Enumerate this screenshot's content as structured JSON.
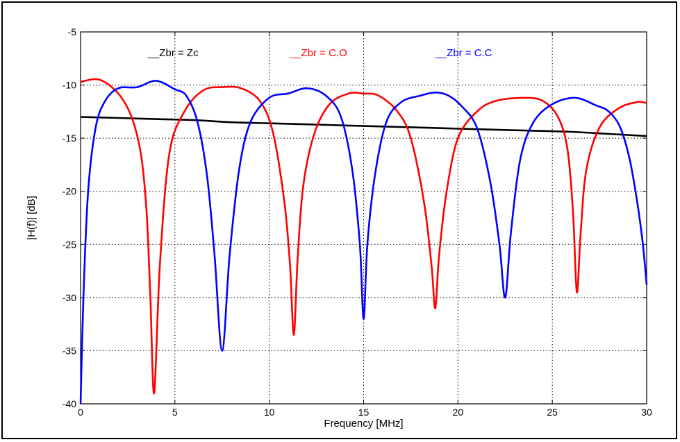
{
  "chart_data": {
    "type": "line",
    "xlabel": "Frequency [MHz]",
    "ylabel": "|H(f)| [dB]",
    "xlim": [
      0,
      30
    ],
    "ylim": [
      -40,
      -5
    ],
    "xticks": [
      0,
      5,
      10,
      15,
      20,
      25,
      30
    ],
    "yticks": [
      -40,
      -35,
      -30,
      -25,
      -20,
      -15,
      -10,
      -5
    ],
    "grid": true,
    "legend_placement": "top, inside plot",
    "series": [
      {
        "name": "__Zbr = Zc",
        "color": "#000000",
        "x": [
          0,
          2,
          4,
          6,
          8,
          10,
          12,
          14,
          16,
          18,
          20,
          22,
          24,
          26,
          28,
          30
        ],
        "values": [
          -13.0,
          -13.1,
          -13.2,
          -13.3,
          -13.5,
          -13.6,
          -13.7,
          -13.8,
          -13.9,
          -14.0,
          -14.1,
          -14.2,
          -14.3,
          -14.4,
          -14.6,
          -14.8
        ]
      },
      {
        "name": "__Zbr = C.O",
        "color": "#ff0000",
        "x": [
          0,
          1.0,
          2.0,
          2.7,
          3.2,
          3.5,
          3.7,
          3.9,
          4.2,
          4.7,
          5.5,
          6.5,
          7.5,
          8.5,
          9.5,
          10.2,
          10.8,
          11.1,
          11.3,
          11.5,
          11.8,
          12.4,
          13.2,
          14.2,
          15.0,
          15.8,
          16.8,
          17.5,
          18.2,
          18.6,
          18.8,
          19.0,
          19.4,
          20.0,
          21.0,
          22.0,
          23.5,
          24.5,
          25.3,
          25.8,
          26.1,
          26.3,
          26.5,
          26.8,
          27.5,
          28.5,
          29.5,
          30.0
        ],
        "values": [
          -9.7,
          -9.5,
          -10.8,
          -13.0,
          -16.5,
          -22.0,
          -30.0,
          -39.0,
          -27.0,
          -16.5,
          -12.5,
          -10.5,
          -10.2,
          -10.3,
          -11.5,
          -14.5,
          -21.0,
          -27.0,
          -33.5,
          -26.5,
          -19.5,
          -14.5,
          -11.8,
          -10.8,
          -10.8,
          -11.0,
          -12.5,
          -15.0,
          -21.0,
          -27.0,
          -31.0,
          -26.0,
          -20.0,
          -15.0,
          -12.5,
          -11.5,
          -11.2,
          -11.5,
          -13.0,
          -16.0,
          -22.0,
          -29.5,
          -24.0,
          -18.0,
          -14.0,
          -12.2,
          -11.6,
          -11.7
        ]
      },
      {
        "name": "__Zbr = C.C",
        "color": "#0000ff",
        "x": [
          0,
          0.15,
          0.4,
          0.8,
          1.3,
          2.0,
          3.0,
          4.0,
          5.0,
          5.6,
          6.2,
          6.7,
          7.1,
          7.5,
          7.9,
          8.4,
          9.0,
          10.0,
          11.0,
          12.0,
          13.0,
          13.8,
          14.4,
          14.8,
          15.0,
          15.2,
          15.6,
          16.2,
          17.0,
          18.0,
          18.8,
          19.5,
          20.2,
          21.0,
          21.7,
          22.2,
          22.5,
          22.8,
          23.3,
          24.0,
          25.0,
          26.2,
          27.3,
          28.0,
          28.6,
          29.1,
          29.5,
          29.8,
          30.0
        ],
        "values": [
          -40.0,
          -30.0,
          -20.0,
          -14.0,
          -11.5,
          -10.3,
          -10.2,
          -9.6,
          -10.4,
          -11.0,
          -13.5,
          -18.5,
          -26.0,
          -35.0,
          -26.0,
          -18.0,
          -13.5,
          -11.2,
          -10.8,
          -10.3,
          -11.0,
          -13.0,
          -18.0,
          -25.0,
          -32.0,
          -25.0,
          -18.5,
          -13.5,
          -11.6,
          -11.0,
          -10.7,
          -11.0,
          -12.0,
          -14.0,
          -19.0,
          -25.0,
          -30.0,
          -24.0,
          -17.0,
          -13.5,
          -11.8,
          -11.2,
          -11.9,
          -12.5,
          -14.0,
          -17.0,
          -21.0,
          -25.0,
          -28.8
        ]
      }
    ]
  }
}
